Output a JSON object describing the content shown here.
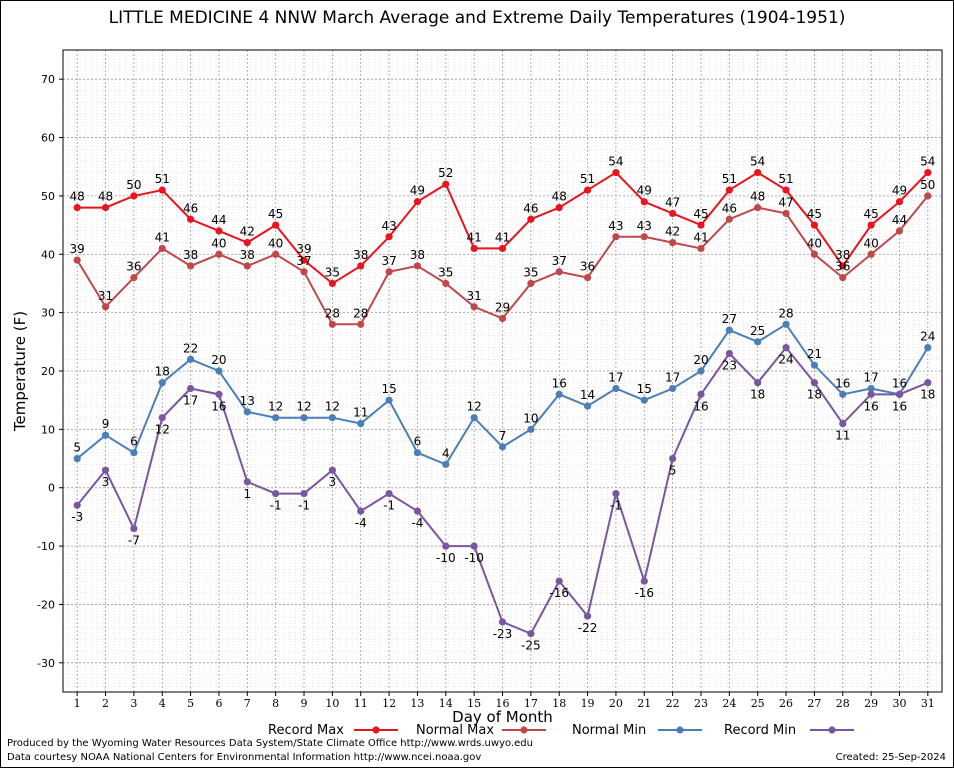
{
  "chart_data": {
    "type": "line",
    "title": "LITTLE MEDICINE 4 NNW March Average and Extreme Daily Temperatures (1904-1951)",
    "xlabel": "Day of Month",
    "ylabel": "Temperature (F)",
    "ylim": [
      -35,
      75
    ],
    "yticks": [
      -30,
      -20,
      -10,
      0,
      10,
      20,
      30,
      40,
      50,
      60,
      70
    ],
    "x": [
      1,
      2,
      3,
      4,
      5,
      6,
      7,
      8,
      9,
      10,
      11,
      12,
      13,
      14,
      15,
      16,
      17,
      18,
      19,
      20,
      21,
      22,
      23,
      24,
      25,
      26,
      27,
      28,
      29,
      30,
      31
    ],
    "grid": true,
    "legend_position": "bottom",
    "series": [
      {
        "name": "Record Max",
        "color": "#e8141e",
        "values": [
          48,
          48,
          50,
          51,
          46,
          44,
          42,
          45,
          39,
          35,
          38,
          43,
          49,
          52,
          41,
          41,
          46,
          48,
          51,
          54,
          49,
          47,
          45,
          51,
          54,
          51,
          45,
          38,
          45,
          49,
          54
        ]
      },
      {
        "name": "Normal Max",
        "color": "#c0484a",
        "values": [
          39,
          31,
          36,
          41,
          38,
          40,
          38,
          40,
          37,
          28,
          28,
          37,
          38,
          35,
          31,
          29,
          35,
          37,
          36,
          43,
          43,
          42,
          41,
          46,
          48,
          47,
          40,
          36,
          40,
          44,
          50
        ]
      },
      {
        "name": "Normal Min",
        "color": "#4a7fb8",
        "values": [
          5,
          9,
          6,
          18,
          22,
          20,
          13,
          12,
          12,
          12,
          11,
          15,
          6,
          4,
          12,
          7,
          10,
          16,
          14,
          17,
          15,
          17,
          20,
          27,
          25,
          28,
          21,
          16,
          17,
          16,
          24
        ]
      },
      {
        "name": "Record Min",
        "color": "#7a55a0",
        "values": [
          -3,
          3,
          -7,
          12,
          17,
          16,
          1,
          -1,
          -1,
          3,
          -4,
          -1,
          -4,
          -10,
          -10,
          -23,
          -25,
          -16,
          -22,
          -1,
          -16,
          5,
          16,
          23,
          18,
          24,
          18,
          11,
          16,
          16,
          18
        ]
      }
    ]
  },
  "footer": {
    "produced_by": "Produced by the Wyoming Water Resources Data System/State Climate Office http://www.wrds.uwyo.edu",
    "courtesy": "Data courtesy NOAA National Centers for Environmental Information http://www.ncei.noaa.gov",
    "created": "Created:  25-Sep-2024"
  }
}
